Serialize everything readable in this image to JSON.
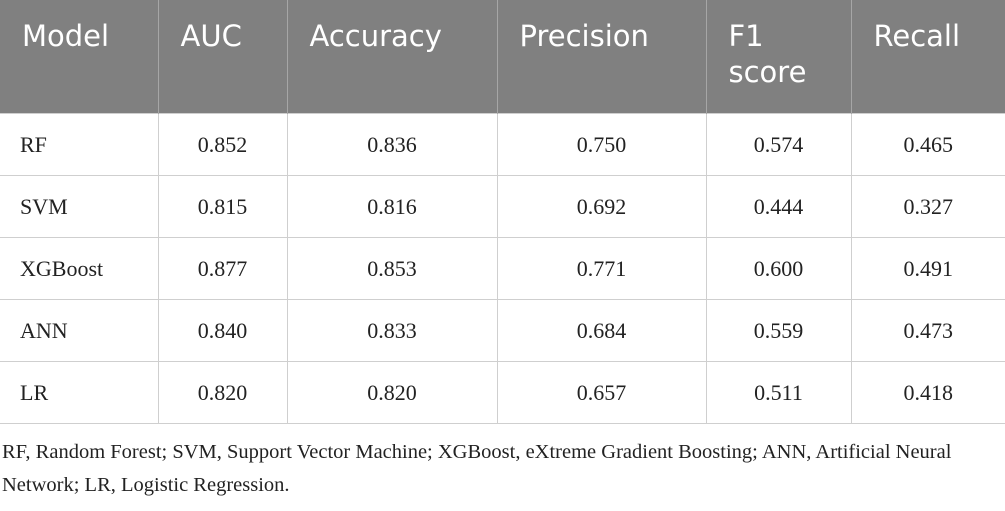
{
  "table": {
    "header": [
      "Model",
      "AUC",
      "Accuracy",
      "Precision",
      "F1 score",
      "Recall"
    ],
    "rows": [
      [
        "RF",
        "0.852",
        "0.836",
        "0.750",
        "0.574",
        "0.465"
      ],
      [
        "SVM",
        "0.815",
        "0.816",
        "0.692",
        "0.444",
        "0.327"
      ],
      [
        "XGBoost",
        "0.877",
        "0.853",
        "0.771",
        "0.600",
        "0.491"
      ],
      [
        "ANN",
        "0.840",
        "0.833",
        "0.684",
        "0.559",
        "0.473"
      ],
      [
        "LR",
        "0.820",
        "0.820",
        "0.657",
        "0.511",
        "0.418"
      ]
    ]
  },
  "footnote": "RF, Random Forest; SVM, Support Vector Machine; XGBoost, eXtreme Gradient Boosting; ANN, Artificial Neural Network; LR, Logistic Regression."
}
